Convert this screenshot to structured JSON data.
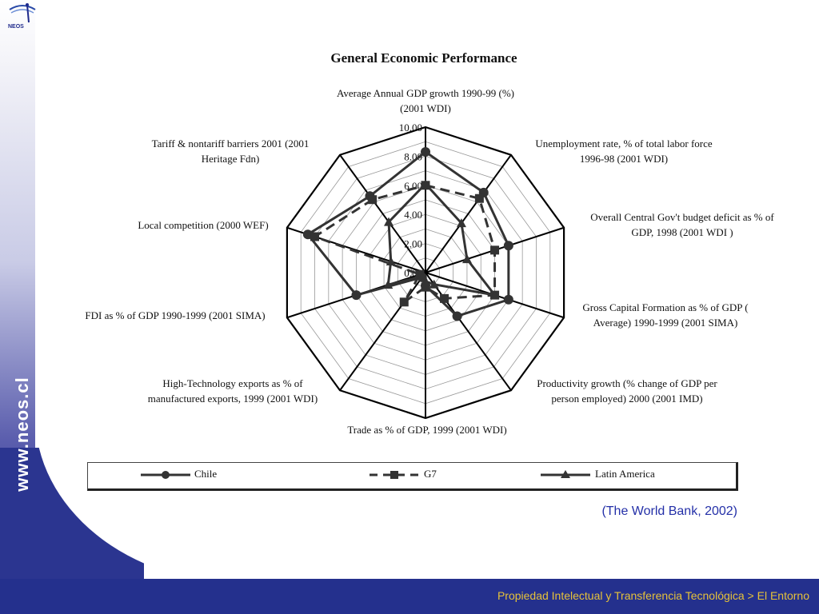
{
  "branding": {
    "logo_text": "NEOS",
    "vertical_url": "www.neos.cl"
  },
  "footer": {
    "text": "Propiedad Intelectual y Transferencia Tecnológica > El Entorno"
  },
  "source_note": "(The World Bank, 2002)",
  "chart_data": {
    "type": "radar",
    "title": "General Economic Performance",
    "axes": [
      "Average Annual GDP growth 1990-99 (%) (2001 WDI)",
      "Unemployment rate, % of total labor force 1996-98 (2001 WDI)",
      "Overall Central Gov't budget deficit as % of GDP, 1998 (2001 WDI )",
      "Gross Capital Formation as % of GDP ( Average) 1990-1999 (2001 SIMA)",
      "Productivity growth (% change of GDP per person employed) 2000 (2001 IMD)",
      "Trade as % of GDP, 1999 (2001 WDI)",
      "High-Technology exports as % of manufactured exports, 1999 (2001 WDI)",
      "FDI as % of GDP 1990-1999 (2001 SIMA)",
      "Local competition (2000 WEF)",
      "Tariff & nontariff barriers 2001 (2001 Heritage Fdn)"
    ],
    "axis_label_lines": [
      [
        "Average Annual GDP growth 1990-99 (%)",
        "(2001 WDI)"
      ],
      [
        "Unemployment rate, % of total labor force",
        "1996-98 (2001 WDI)"
      ],
      [
        "Overall Central Gov't budget deficit as % of",
        "GDP, 1998 (2001 WDI )"
      ],
      [
        "Gross Capital Formation as % of GDP (",
        "Average) 1990-1999 (2001 SIMA)"
      ],
      [
        "Productivity growth (% change of GDP per",
        "person employed) 2000 (2001 IMD)"
      ],
      [
        "Trade as % of GDP, 1999 (2001 WDI)"
      ],
      [
        "High-Technology exports as % of",
        "manufactured exports, 1999 (2001 WDI)"
      ],
      [
        "FDI as % of GDP 1990-1999 (2001 SIMA)"
      ],
      [
        "Local competition (2000 WEF)"
      ],
      [
        "Tariff & nontariff barriers 2001 (2001",
        "Heritage Fdn)"
      ]
    ],
    "scale_ticks": [
      "0.00",
      "2.00",
      "4.00",
      "6.00",
      "8.00",
      "10.00"
    ],
    "range": [
      0,
      10
    ],
    "grid": true,
    "series": [
      {
        "name": "Chile",
        "marker": "circle",
        "dash": "solid",
        "values": [
          8.3,
          6.8,
          6.0,
          6.0,
          3.7,
          0.9,
          0.4,
          5.0,
          8.5,
          6.5
        ]
      },
      {
        "name": "G7",
        "marker": "square",
        "dash": "dashed",
        "values": [
          6.0,
          6.3,
          5.0,
          5.0,
          2.2,
          1.0,
          2.5,
          0.4,
          8.0,
          6.2
        ]
      },
      {
        "name": "Latin America",
        "marker": "triangle",
        "dash": "solid",
        "values": [
          6.1,
          4.2,
          3.0,
          5.0,
          1.0,
          0.6,
          0.3,
          2.7,
          2.5,
          4.3
        ]
      }
    ],
    "legend_position": "bottom"
  },
  "colors": {
    "footer_bg": "#24308d",
    "footer_text": "#e6c23a",
    "series_color": "#333333",
    "grid": "#888888",
    "source_text": "#2430a8"
  }
}
